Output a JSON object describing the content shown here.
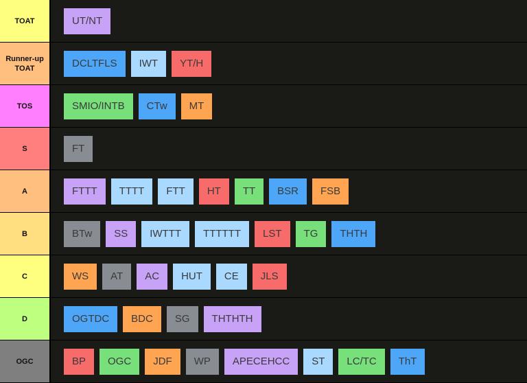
{
  "tiers": [
    {
      "label": "TOAT",
      "color": "#ffff7f",
      "items": [
        {
          "label": "UT/NT",
          "color": "#c8a2f7"
        }
      ]
    },
    {
      "label": "Runner-up TOAT",
      "color": "#ffbf7f",
      "items": [
        {
          "label": "DCLTFLS",
          "color": "#4da6f7"
        },
        {
          "label": "IWT",
          "color": "#a9d9ff"
        },
        {
          "label": "YT/H",
          "color": "#f76b6b"
        }
      ]
    },
    {
      "label": "TOS",
      "color": "#ff7fff",
      "items": [
        {
          "label": "SMIO/INTB",
          "color": "#77e07b"
        },
        {
          "label": "CTw",
          "color": "#4da6f7"
        },
        {
          "label": "MT",
          "color": "#ffa552"
        }
      ]
    },
    {
      "label": "S",
      "color": "#ff7f7f",
      "items": [
        {
          "label": "FT",
          "color": "#878d92"
        }
      ]
    },
    {
      "label": "A",
      "color": "#ffbf7f",
      "items": [
        {
          "label": "FTTT",
          "color": "#c8a2f7"
        },
        {
          "label": "TTTT",
          "color": "#a9d9ff"
        },
        {
          "label": "FTT",
          "color": "#a9d9ff"
        },
        {
          "label": "HT",
          "color": "#f76b6b"
        },
        {
          "label": "TT",
          "color": "#77e07b"
        },
        {
          "label": "BSR",
          "color": "#4da6f7"
        },
        {
          "label": "FSB",
          "color": "#ffa552"
        }
      ]
    },
    {
      "label": "B",
      "color": "#ffdf7f",
      "items": [
        {
          "label": "BTw",
          "color": "#878d92"
        },
        {
          "label": "SS",
          "color": "#c8a2f7"
        },
        {
          "label": "IWTTT",
          "color": "#a9d9ff"
        },
        {
          "label": "TTTTTT",
          "color": "#a9d9ff"
        },
        {
          "label": "LST",
          "color": "#f76b6b"
        },
        {
          "label": "TG",
          "color": "#77e07b"
        },
        {
          "label": "THTH",
          "color": "#4da6f7"
        }
      ]
    },
    {
      "label": "C",
      "color": "#ffff7f",
      "items": [
        {
          "label": "WS",
          "color": "#ffa552"
        },
        {
          "label": "AT",
          "color": "#878d92"
        },
        {
          "label": "AC",
          "color": "#c8a2f7"
        },
        {
          "label": "HUT",
          "color": "#a9d9ff"
        },
        {
          "label": "CE",
          "color": "#a9d9ff"
        },
        {
          "label": "JLS",
          "color": "#f76b6b"
        }
      ]
    },
    {
      "label": "D",
      "color": "#bfff7f",
      "items": [
        {
          "label": "OGTDC",
          "color": "#4da6f7"
        },
        {
          "label": "BDC",
          "color": "#ffa552"
        },
        {
          "label": "SG",
          "color": "#878d92"
        },
        {
          "label": "THTHTH",
          "color": "#c8a2f7"
        }
      ]
    },
    {
      "label": "OGC",
      "color": "#7f7f7f",
      "items": [
        {
          "label": "BP",
          "color": "#f76b6b"
        },
        {
          "label": "OGC",
          "color": "#77e07b"
        },
        {
          "label": "JDF",
          "color": "#ffa552"
        },
        {
          "label": "WP",
          "color": "#878d92"
        },
        {
          "label": "APECEHCC",
          "color": "#c8a2f7"
        },
        {
          "label": "ST",
          "color": "#a9d9ff"
        },
        {
          "label": "LC/TC",
          "color": "#77e07b"
        },
        {
          "label": "ThT",
          "color": "#4da6f7"
        }
      ]
    }
  ]
}
